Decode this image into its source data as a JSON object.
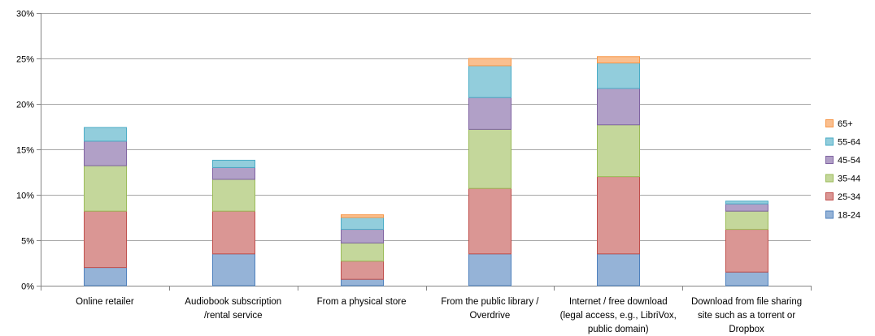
{
  "chart_data": {
    "type": "bar",
    "stacked": true,
    "categories": [
      [
        "Online retailer"
      ],
      [
        "Audiobook subscription",
        "/rental service"
      ],
      [
        "From a physical store"
      ],
      [
        "From the public library /",
        "Overdrive"
      ],
      [
        "Internet / free download",
        "(legal access, e.g., LibriVox,",
        "public domain)"
      ],
      [
        "Download from file sharing",
        "site such as a torrent or",
        "Dropbox"
      ]
    ],
    "series": [
      {
        "name": "18-24",
        "color": "#95B3D7",
        "stroke": "#4F81BD",
        "values": [
          2.0,
          3.5,
          0.7,
          3.5,
          3.5,
          1.5
        ]
      },
      {
        "name": "25-34",
        "color": "#DA9694",
        "stroke": "#C0504D",
        "values": [
          6.2,
          4.7,
          2.0,
          7.2,
          8.5,
          4.7
        ]
      },
      {
        "name": "35-44",
        "color": "#C4D79B",
        "stroke": "#9BBB59",
        "values": [
          5.0,
          3.5,
          2.0,
          6.5,
          5.7,
          2.0
        ]
      },
      {
        "name": "45-54",
        "color": "#B1A0C7",
        "stroke": "#8064A2",
        "values": [
          2.7,
          1.3,
          1.5,
          3.5,
          4.0,
          0.8
        ]
      },
      {
        "name": "55-64",
        "color": "#92CDDC",
        "stroke": "#4BACC6",
        "values": [
          1.5,
          0.8,
          1.3,
          3.5,
          2.8,
          0.3
        ]
      },
      {
        "name": "65+",
        "color": "#FABF8F",
        "stroke": "#F79646",
        "values": [
          0,
          0,
          0.3,
          0.8,
          0.7,
          0
        ]
      }
    ],
    "yticks": [
      "0%",
      "5%",
      "10%",
      "15%",
      "20%",
      "25%",
      "30%"
    ],
    "ylim": [
      0,
      30
    ],
    "grid": true,
    "legend_position": "right",
    "legend_order": [
      "65+",
      "55-64",
      "45-54",
      "35-44",
      "25-34",
      "18-24"
    ]
  }
}
